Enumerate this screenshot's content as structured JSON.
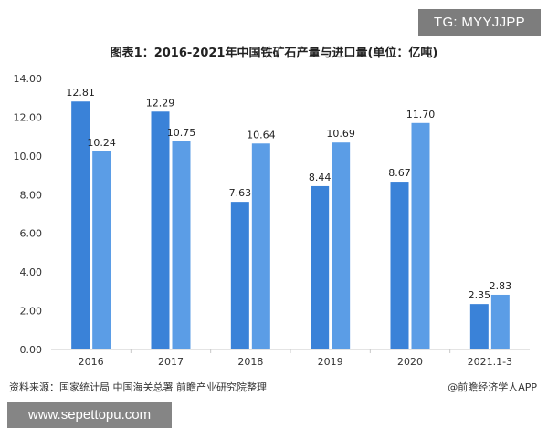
{
  "overlays": {
    "tg_label": "TG: MYYJJPP",
    "url_label": "www.sepettopu.com"
  },
  "footer": {
    "source": "资料来源：国家统计局 中国海关总署 前瞻产业研究院整理",
    "credit": "@前瞻经济学人APP"
  },
  "colors": {
    "production": "#3a82d8",
    "imports": "#5b9de6"
  },
  "chart_data": {
    "type": "bar",
    "title": "图表1：2016-2021年中国铁矿石产量与进口量(单位：亿吨)",
    "xlabel": "",
    "ylabel": "",
    "categories": [
      "2016",
      "2017",
      "2018",
      "2019",
      "2020",
      "2021.1-3"
    ],
    "series": [
      {
        "values": [
          12.81,
          12.29,
          7.63,
          8.44,
          8.67,
          2.35
        ]
      },
      {
        "values": [
          10.24,
          10.75,
          10.64,
          10.69,
          11.7,
          2.83
        ]
      }
    ],
    "ylim": [
      0,
      14
    ],
    "yticks": [
      "0.00",
      "2.00",
      "4.00",
      "6.00",
      "8.00",
      "10.00",
      "12.00",
      "14.00"
    ],
    "grid": false,
    "legend": "none"
  }
}
